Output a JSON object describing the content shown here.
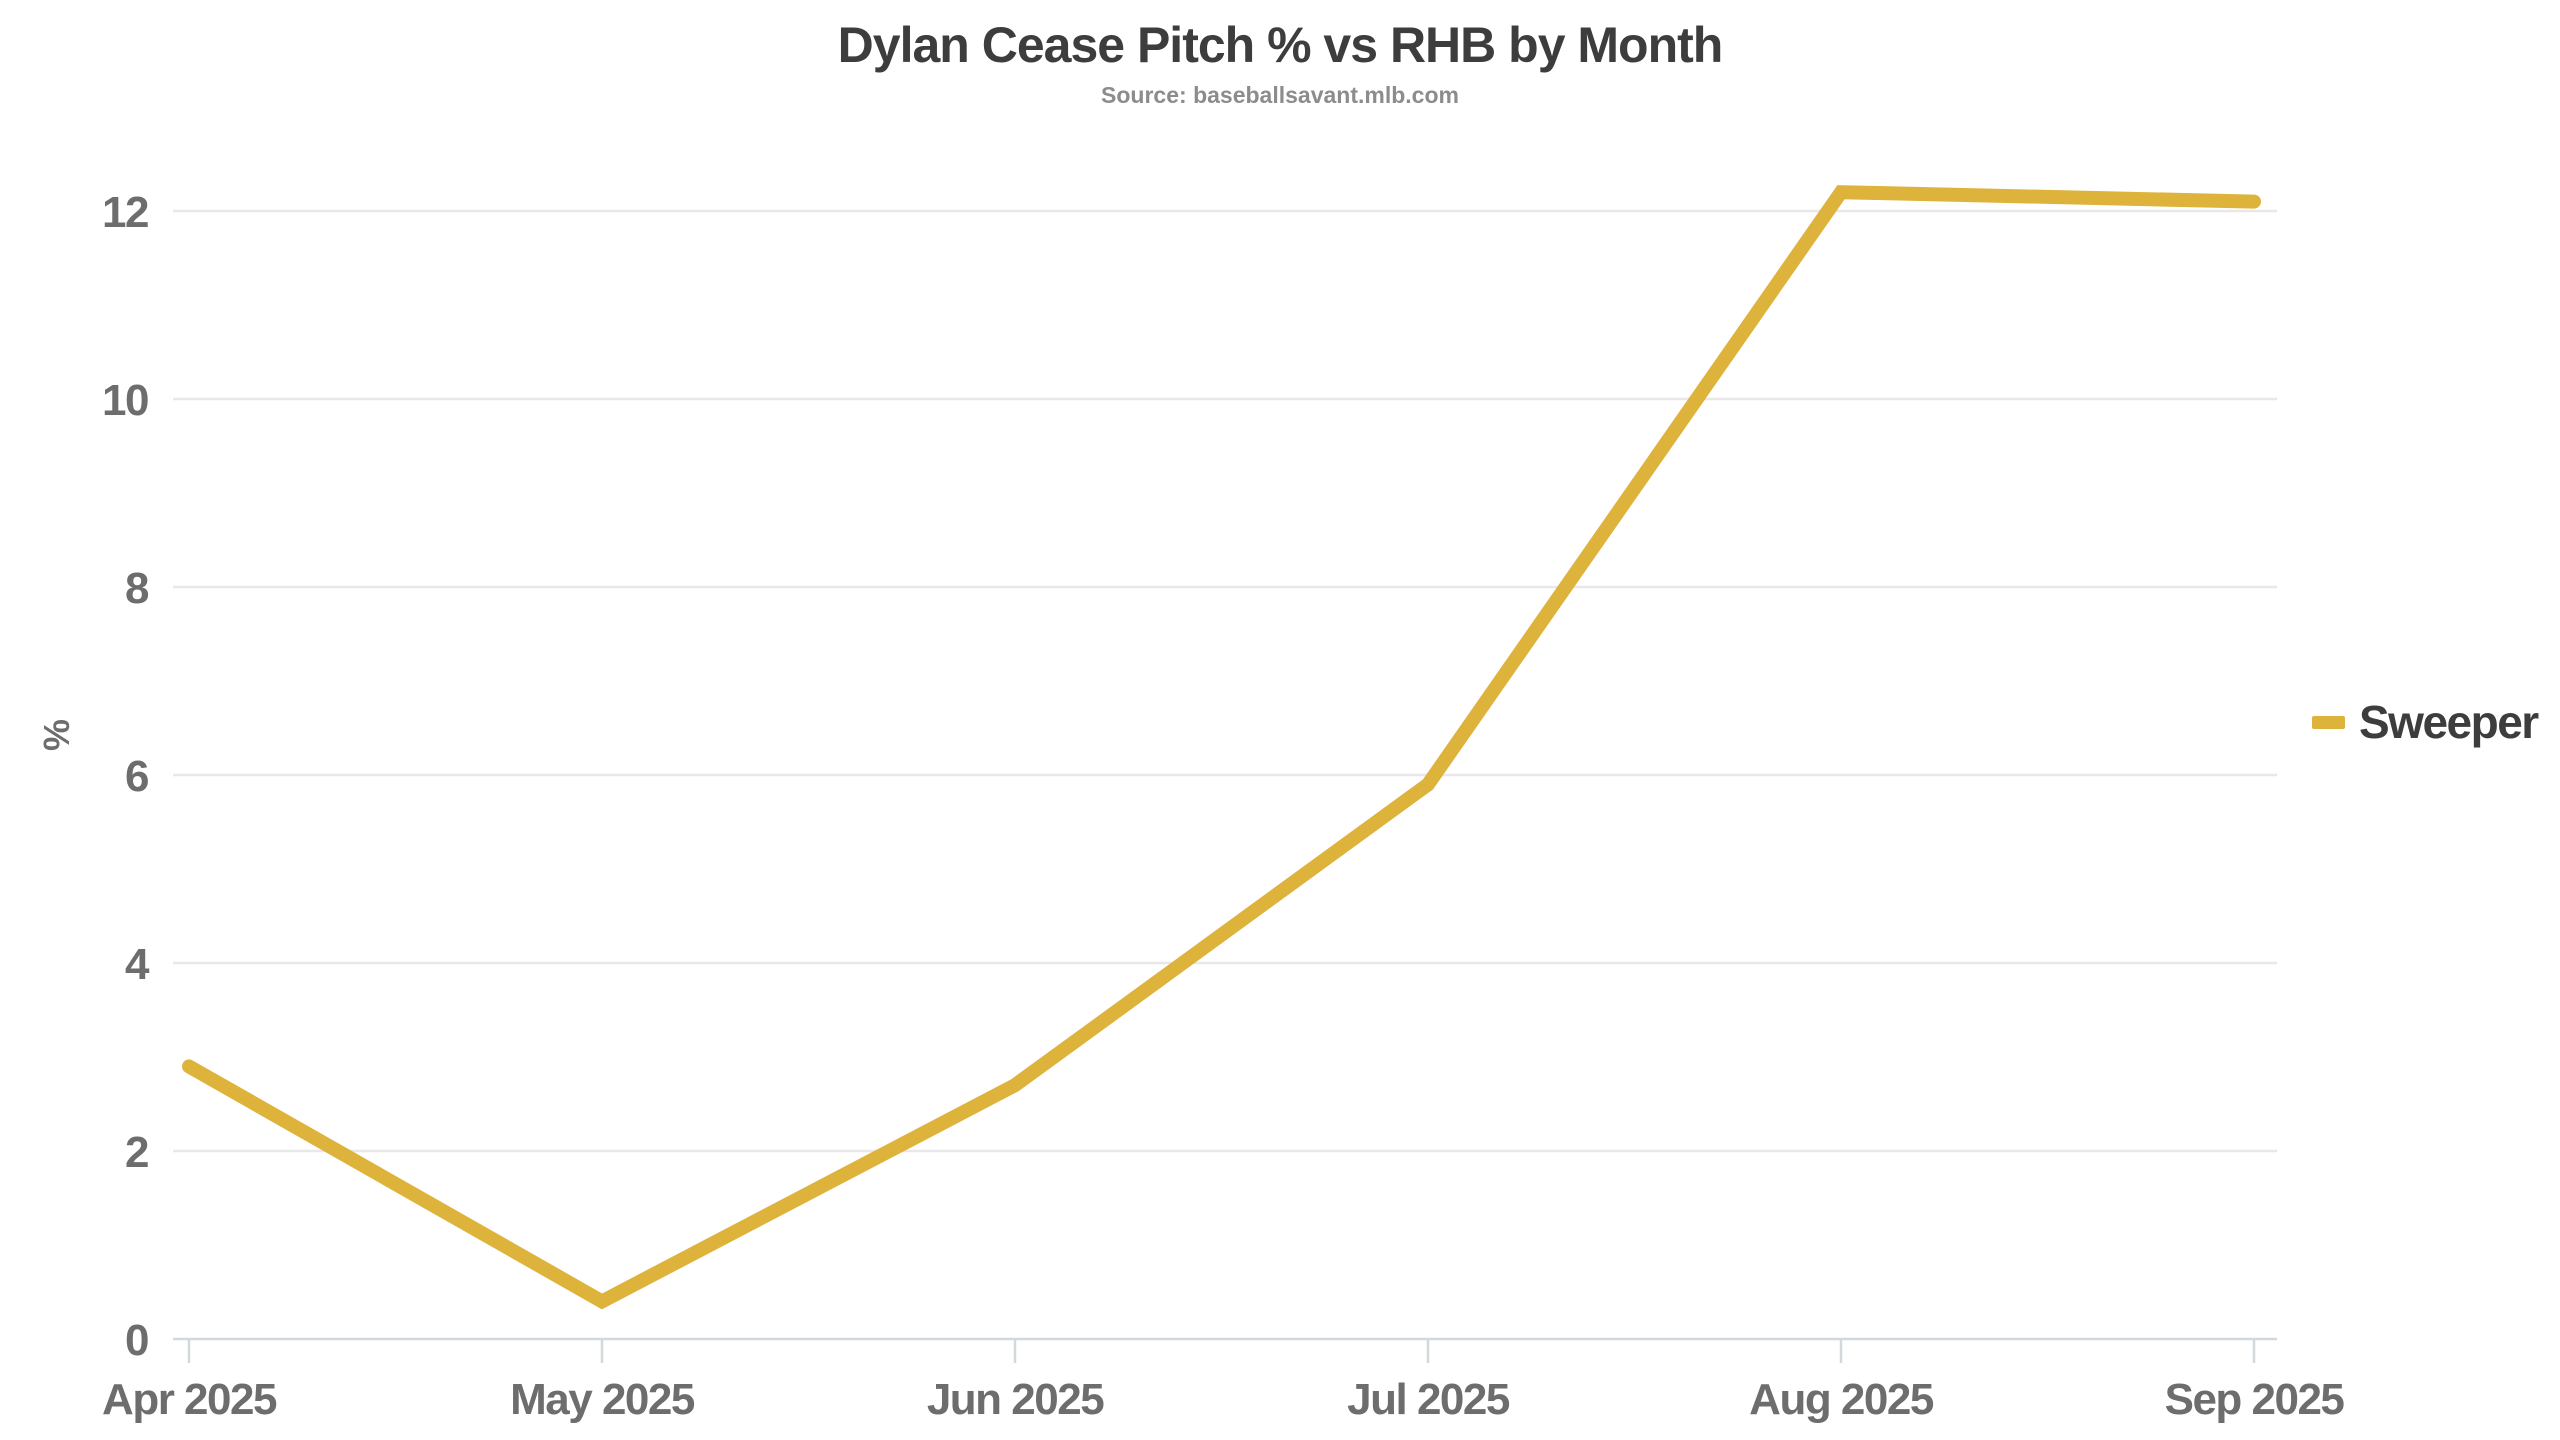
{
  "header": {
    "title": "Dylan Cease Pitch % vs RHB by Month",
    "subtitle": "Source: baseballsavant.mlb.com"
  },
  "legend": {
    "label": "Sweeper",
    "swatch_color": "#ddb33c"
  },
  "chart_data": {
    "type": "line",
    "title": "Dylan Cease Pitch % vs RHB by Month",
    "subtitle": "Source: baseballsavant.mlb.com",
    "categories": [
      "Apr 2025",
      "May 2025",
      "Jun 2025",
      "Jul 2025",
      "Aug 2025",
      "Sep 2025"
    ],
    "series": [
      {
        "name": "Sweeper",
        "color": "#ddb33c",
        "values": [
          2.9,
          0.4,
          2.7,
          5.9,
          12.2,
          12.1
        ]
      }
    ],
    "xlabel": "",
    "ylabel": "%",
    "yticks": [
      0,
      2,
      4,
      6,
      8,
      10,
      12
    ],
    "ylim": [
      0,
      12.8
    ],
    "grid": "horizontal",
    "legend_position": "right-middle"
  },
  "colors": {
    "title": "#3d3d3d",
    "subtitle": "#8c8c8c",
    "tick_label": "#6d6d6d",
    "gridline": "#e8e8e8",
    "axis_line": "#d3d8dc",
    "series_line": "#ddb33c",
    "background": "#ffffff"
  }
}
